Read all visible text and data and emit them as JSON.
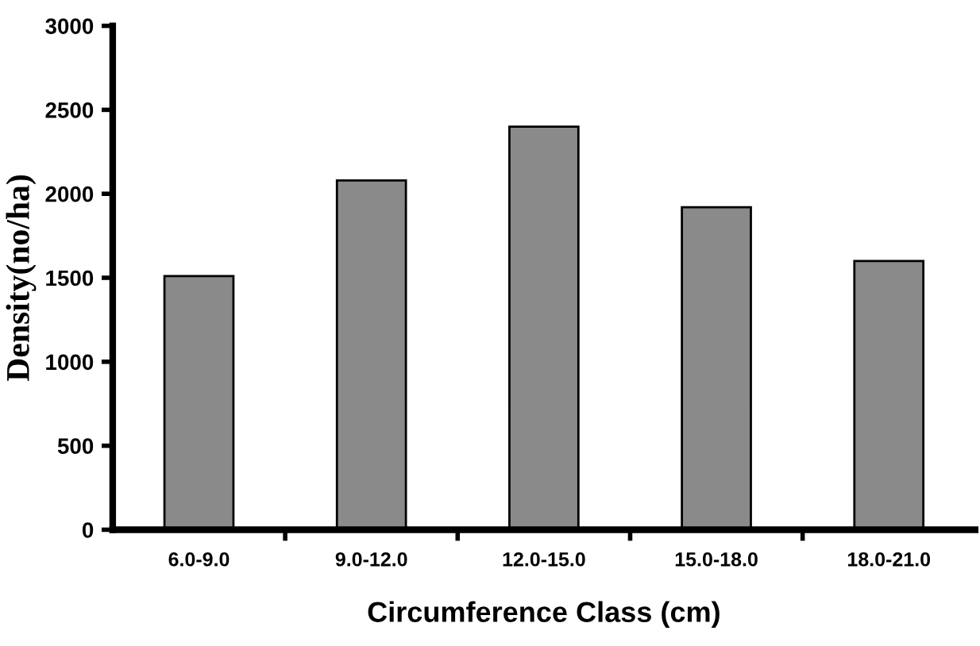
{
  "chart_data": {
    "type": "bar",
    "xlabel": "Circumference Class (cm)",
    "ylabel": "Density(no/ha)",
    "categories": [
      "6.0-9.0",
      "9.0-12.0",
      "12.0-15.0",
      "15.0-18.0",
      "18.0-21.0"
    ],
    "values": [
      1510,
      2080,
      2400,
      1920,
      1600
    ],
    "color": "#8a8a8a",
    "ylim": [
      0,
      3000
    ],
    "yticks": [
      0,
      500,
      1000,
      1500,
      2000,
      2500,
      3000
    ],
    "grid": false,
    "legend": false
  }
}
